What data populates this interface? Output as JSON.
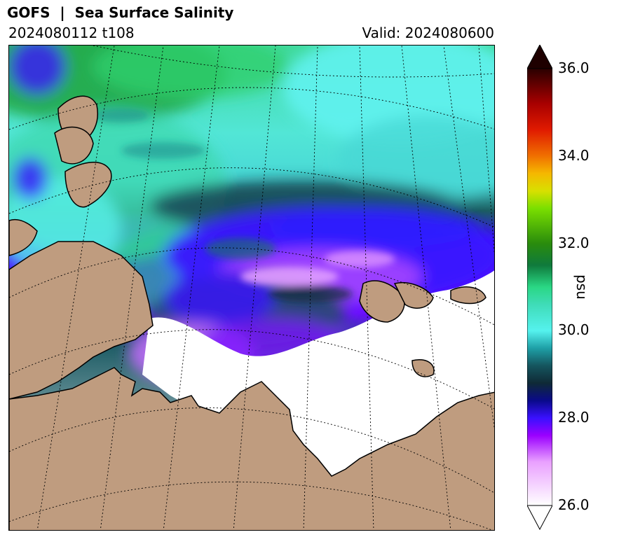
{
  "header": {
    "title": "GOFS  |  Sea Surface Salinity",
    "run": "2024080112 t108",
    "valid": "Valid: 2024080600"
  },
  "map": {
    "land_color": "#bf9c7f",
    "ice_color": "#ffffff",
    "coast_color": "#000000",
    "graticule_style": "dotted black"
  },
  "colorbar": {
    "unit": "psu",
    "min": 26.0,
    "max": 36.0,
    "ticks": [
      "26.0",
      "28.0",
      "30.0",
      "32.0",
      "34.0",
      "36.0"
    ],
    "extend": "both",
    "stops": [
      {
        "value": 26.0,
        "color": "#ffffff"
      },
      {
        "value": 27.0,
        "color": "#e9a0ff"
      },
      {
        "value": 27.6,
        "color": "#9b00ff"
      },
      {
        "value": 28.0,
        "color": "#3a10ff"
      },
      {
        "value": 28.4,
        "color": "#0a0a8a"
      },
      {
        "value": 28.8,
        "color": "#0f2a36"
      },
      {
        "value": 29.2,
        "color": "#15555e"
      },
      {
        "value": 29.6,
        "color": "#1e9fa6"
      },
      {
        "value": 30.0,
        "color": "#55f2ee"
      },
      {
        "value": 30.6,
        "color": "#3fdcb8"
      },
      {
        "value": 31.0,
        "color": "#2ad784"
      },
      {
        "value": 31.5,
        "color": "#0f7a3c"
      },
      {
        "value": 32.0,
        "color": "#2a8c0c"
      },
      {
        "value": 32.8,
        "color": "#7adf00"
      },
      {
        "value": 33.2,
        "color": "#d8e000"
      },
      {
        "value": 33.6,
        "color": "#f5b800"
      },
      {
        "value": 34.0,
        "color": "#f07000"
      },
      {
        "value": 34.6,
        "color": "#e01a00"
      },
      {
        "value": 35.2,
        "color": "#a80000"
      },
      {
        "value": 36.0,
        "color": "#2a0000"
      }
    ],
    "over_color": "#1e0000",
    "under_color": "#ffffff"
  }
}
